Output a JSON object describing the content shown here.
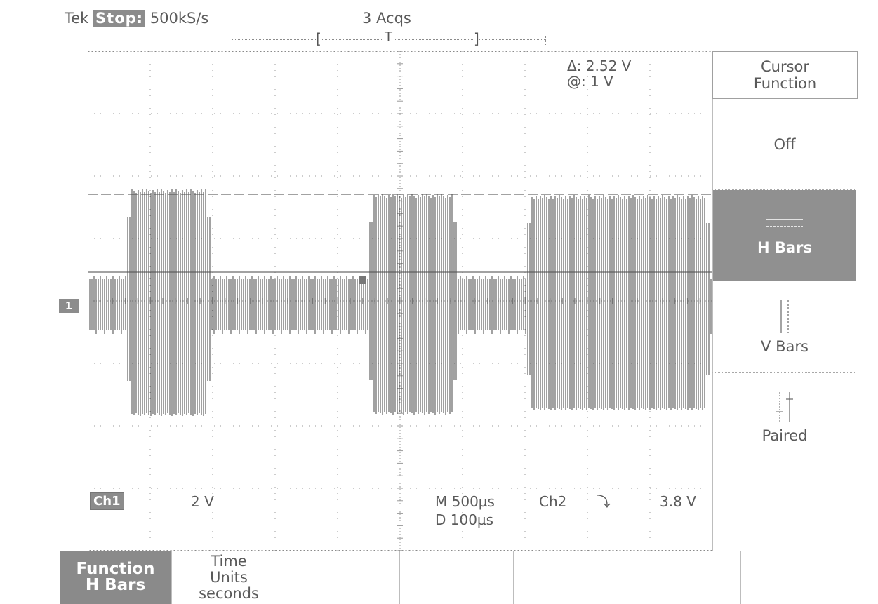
{
  "header": {
    "brand": "Tek",
    "state": "Stop:",
    "sample_rate": "500kS/s",
    "acquisitions": "3 Acqs",
    "record_bracket_left": "[",
    "trigger_marker": "T",
    "record_bracket_right": "]"
  },
  "cursor_readout": {
    "delta": "Δ: 2.52 V",
    "at": "@: 1 V"
  },
  "channel_marker": "1",
  "status": {
    "channel_badge": "Ch1",
    "volts_per_div": "2 V",
    "main_timebase": "M 500µs",
    "delayed_timebase": "D 100µs",
    "trigger_source": "Ch2",
    "trigger_slope": "⤵",
    "trigger_level": "3.8 V"
  },
  "side_menu": {
    "title_line1": "Cursor",
    "title_line2": "Function",
    "items": [
      {
        "label": "Off",
        "selected": false,
        "icon": "none"
      },
      {
        "label": "H Bars",
        "selected": true,
        "icon": "h-bars-icon"
      },
      {
        "label": "V Bars",
        "selected": false,
        "icon": "v-bars-icon"
      },
      {
        "label": "Paired",
        "selected": false,
        "icon": "paired-icon"
      }
    ]
  },
  "bottom_menu": {
    "function": {
      "line1": "Function",
      "line2": "H Bars"
    },
    "time_units": {
      "line1": "Time",
      "line2": "Units",
      "line3": "seconds"
    }
  },
  "colors": {
    "trace": "#555555",
    "grid": "#9a9a9a",
    "selected_bg": "#8c8c8c",
    "text": "#5a5a5a"
  }
}
